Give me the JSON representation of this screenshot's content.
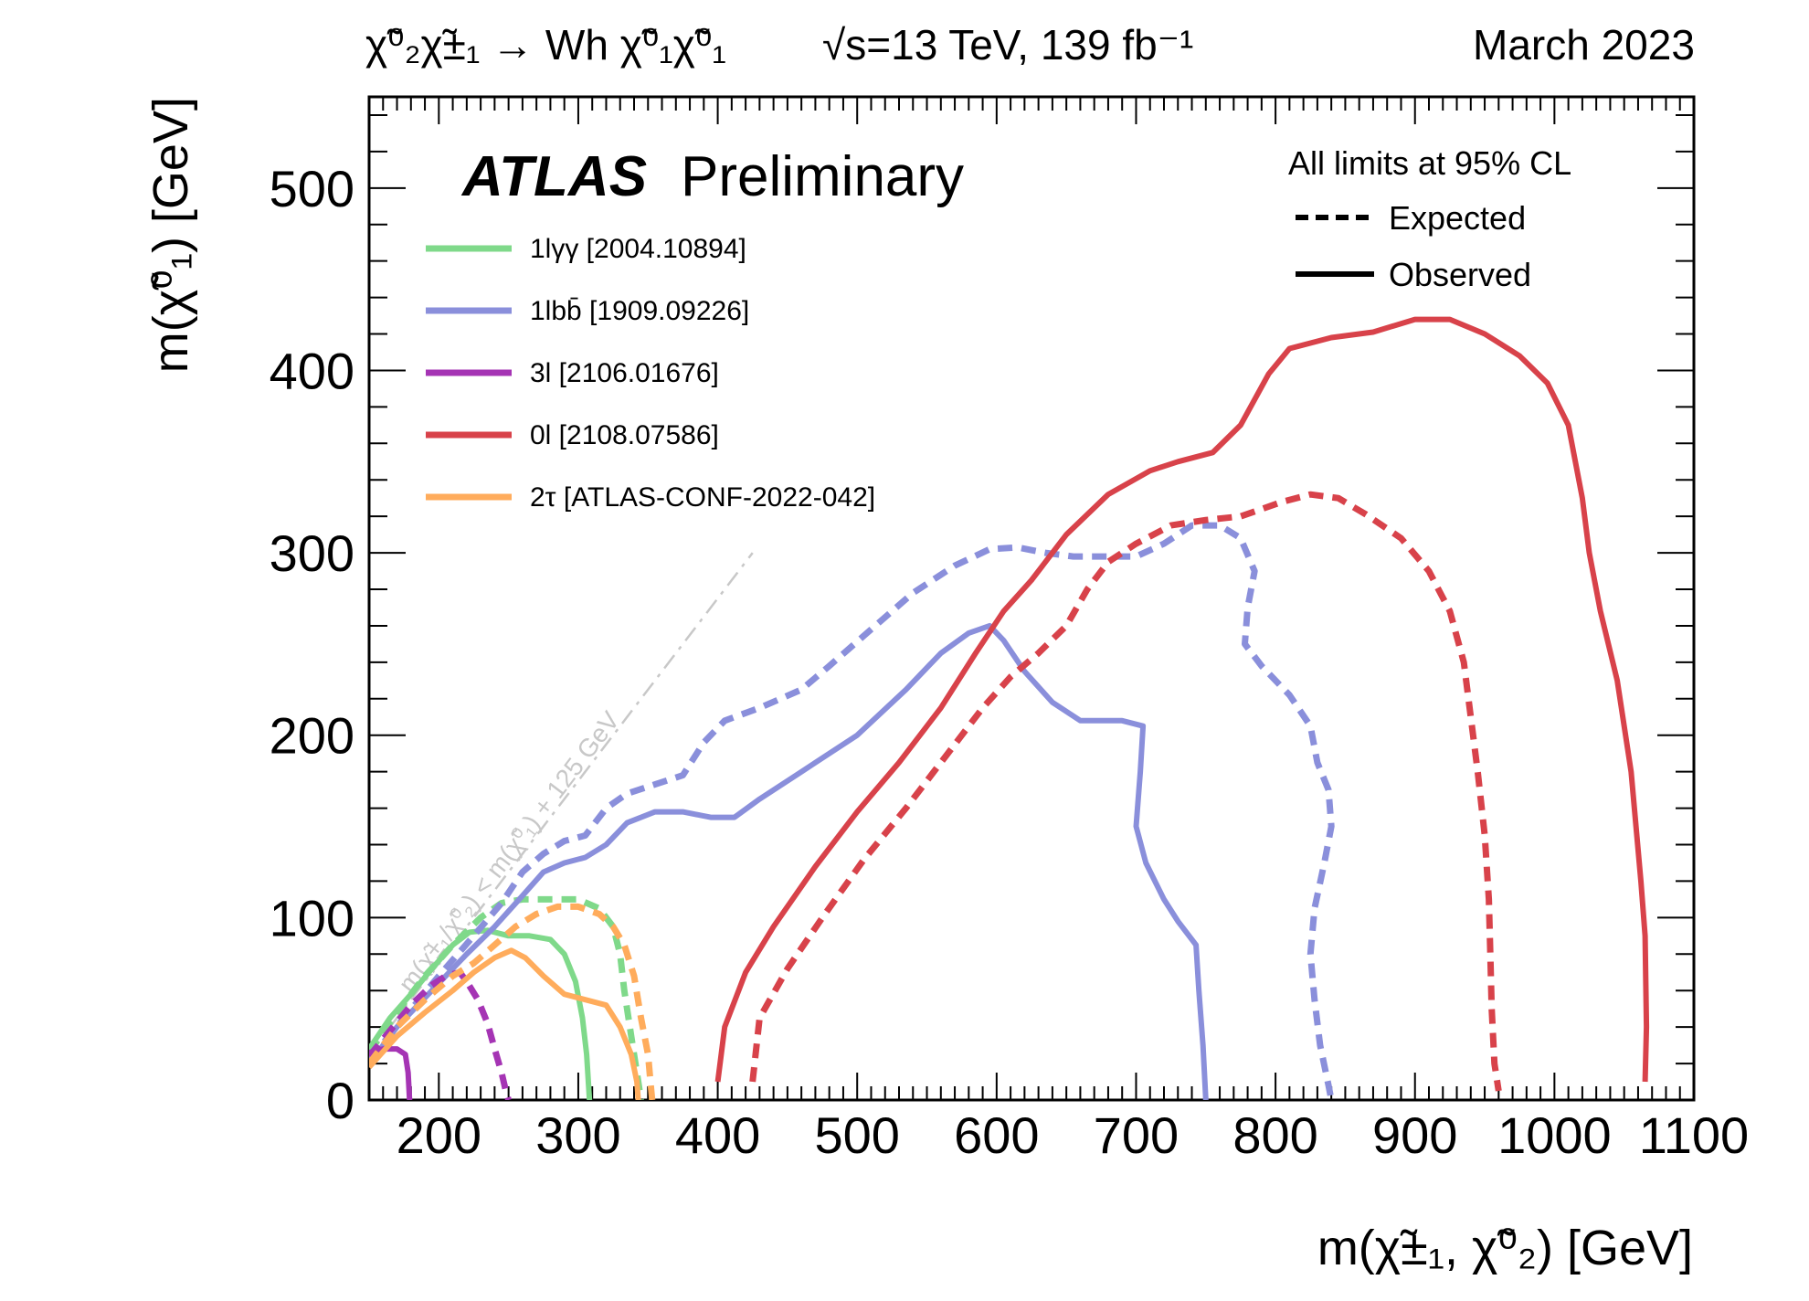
{
  "header": {
    "process": "χ̃⁰₂χ̃±₁ → Wh χ̃⁰₁χ̃⁰₁",
    "energy": "√s=13 TeV, 139 fb⁻¹",
    "date": "March 2023"
  },
  "colors": {
    "green": "#7fd98a",
    "blue": "#8a8fdb",
    "purple": "#a534b4",
    "red": "#d8424a",
    "orange": "#ffac5c",
    "diagonal": "#c8c8c8"
  },
  "chart_data": {
    "type": "line",
    "title": "ATLAS Preliminary",
    "xlabel": "m(χ̃±₁, χ̃⁰₂) [GeV]",
    "ylabel": "m(χ̃⁰₁) [GeV]",
    "xlim": [
      150,
      1100
    ],
    "ylim": [
      0,
      550
    ],
    "xticks": [
      200,
      300,
      400,
      500,
      600,
      700,
      800,
      900,
      1000,
      1100
    ],
    "yticks": [
      0,
      100,
      200,
      300,
      400,
      500
    ],
    "grid": false,
    "legend_position": "top-left",
    "atlas_label": "ATLAS",
    "atlas_sublabel": "Preliminary",
    "cl_note": "All limits at 95% CL",
    "style_legend": {
      "expected": "Expected",
      "observed": "Observed"
    },
    "diagonal": {
      "label": "m(χ̃±₁/χ̃⁰₂) < m(χ̃⁰₁) + 125 GeV",
      "points": [
        [
          150,
          25
        ],
        [
          425,
          300
        ]
      ]
    },
    "series": [
      {
        "name": "1lγγ [2004.10894]",
        "color_key": "green",
        "observed": [
          [
            150,
            28
          ],
          [
            165,
            45
          ],
          [
            180,
            58
          ],
          [
            195,
            72
          ],
          [
            210,
            85
          ],
          [
            222,
            92
          ],
          [
            235,
            93
          ],
          [
            250,
            90
          ],
          [
            265,
            90
          ],
          [
            280,
            88
          ],
          [
            290,
            80
          ],
          [
            298,
            65
          ],
          [
            303,
            45
          ],
          [
            306,
            25
          ],
          [
            308,
            0
          ]
        ],
        "expected": [
          [
            150,
            26
          ],
          [
            170,
            48
          ],
          [
            190,
            68
          ],
          [
            210,
            85
          ],
          [
            230,
            100
          ],
          [
            245,
            108
          ],
          [
            260,
            110
          ],
          [
            280,
            110
          ],
          [
            300,
            110
          ],
          [
            315,
            105
          ],
          [
            325,
            95
          ],
          [
            330,
            80
          ],
          [
            333,
            60
          ],
          [
            338,
            35
          ],
          [
            343,
            10
          ],
          [
            345,
            0
          ]
        ]
      },
      {
        "name": "1lbb̄ [1909.09226]",
        "color_key": "blue",
        "observed": [
          [
            150,
            20
          ],
          [
            170,
            40
          ],
          [
            195,
            60
          ],
          [
            220,
            80
          ],
          [
            240,
            95
          ],
          [
            260,
            112
          ],
          [
            275,
            125
          ],
          [
            290,
            130
          ],
          [
            305,
            133
          ],
          [
            320,
            140
          ],
          [
            335,
            152
          ],
          [
            355,
            158
          ],
          [
            375,
            158
          ],
          [
            395,
            155
          ],
          [
            412,
            155
          ],
          [
            430,
            165
          ],
          [
            460,
            180
          ],
          [
            500,
            200
          ],
          [
            535,
            225
          ],
          [
            560,
            245
          ],
          [
            580,
            256
          ],
          [
            595,
            260
          ],
          [
            605,
            252
          ],
          [
            620,
            235
          ],
          [
            640,
            218
          ],
          [
            660,
            208
          ],
          [
            690,
            208
          ],
          [
            705,
            205
          ],
          [
            703,
            180
          ],
          [
            700,
            150
          ],
          [
            707,
            130
          ],
          [
            720,
            110
          ],
          [
            730,
            98
          ],
          [
            743,
            85
          ],
          [
            745,
            60
          ],
          [
            748,
            30
          ],
          [
            750,
            0
          ]
        ],
        "expected": [
          [
            150,
            22
          ],
          [
            175,
            45
          ],
          [
            200,
            68
          ],
          [
            225,
            90
          ],
          [
            245,
            108
          ],
          [
            260,
            125
          ],
          [
            275,
            135
          ],
          [
            290,
            142
          ],
          [
            305,
            145
          ],
          [
            320,
            160
          ],
          [
            335,
            168
          ],
          [
            355,
            173
          ],
          [
            375,
            178
          ],
          [
            390,
            196
          ],
          [
            405,
            208
          ],
          [
            430,
            215
          ],
          [
            460,
            225
          ],
          [
            480,
            238
          ],
          [
            510,
            258
          ],
          [
            540,
            278
          ],
          [
            570,
            293
          ],
          [
            595,
            302
          ],
          [
            615,
            303
          ],
          [
            635,
            300
          ],
          [
            655,
            298
          ],
          [
            675,
            298
          ],
          [
            700,
            298
          ],
          [
            720,
            305
          ],
          [
            740,
            315
          ],
          [
            760,
            315
          ],
          [
            775,
            308
          ],
          [
            785,
            290
          ],
          [
            780,
            270
          ],
          [
            778,
            250
          ],
          [
            790,
            238
          ],
          [
            810,
            222
          ],
          [
            825,
            205
          ],
          [
            830,
            185
          ],
          [
            838,
            170
          ],
          [
            840,
            150
          ],
          [
            835,
            130
          ],
          [
            828,
            105
          ],
          [
            825,
            80
          ],
          [
            828,
            55
          ],
          [
            832,
            30
          ],
          [
            838,
            8
          ],
          [
            840,
            0
          ]
        ]
      },
      {
        "name": "3l [2106.01676]",
        "color_key": "purple",
        "observed": [
          [
            150,
            26
          ],
          [
            160,
            28
          ],
          [
            170,
            28
          ],
          [
            176,
            25
          ],
          [
            178,
            15
          ],
          [
            179,
            0
          ]
        ],
        "expected": [
          [
            150,
            24
          ],
          [
            165,
            38
          ],
          [
            180,
            52
          ],
          [
            195,
            63
          ],
          [
            205,
            68
          ],
          [
            215,
            70
          ],
          [
            220,
            65
          ],
          [
            228,
            55
          ],
          [
            235,
            42
          ],
          [
            240,
            28
          ],
          [
            245,
            15
          ],
          [
            248,
            5
          ],
          [
            250,
            0
          ]
        ]
      },
      {
        "name": "0l [2108.07586]",
        "color_key": "red",
        "observed": [
          [
            400,
            10
          ],
          [
            405,
            40
          ],
          [
            420,
            70
          ],
          [
            440,
            95
          ],
          [
            470,
            128
          ],
          [
            500,
            158
          ],
          [
            530,
            185
          ],
          [
            560,
            215
          ],
          [
            585,
            245
          ],
          [
            605,
            268
          ],
          [
            625,
            285
          ],
          [
            650,
            310
          ],
          [
            680,
            332
          ],
          [
            710,
            345
          ],
          [
            730,
            350
          ],
          [
            755,
            355
          ],
          [
            775,
            370
          ],
          [
            795,
            398
          ],
          [
            810,
            412
          ],
          [
            840,
            418
          ],
          [
            870,
            421
          ],
          [
            900,
            428
          ],
          [
            925,
            428
          ],
          [
            950,
            420
          ],
          [
            975,
            408
          ],
          [
            995,
            393
          ],
          [
            1010,
            370
          ],
          [
            1020,
            330
          ],
          [
            1025,
            300
          ],
          [
            1033,
            268
          ],
          [
            1045,
            230
          ],
          [
            1055,
            180
          ],
          [
            1062,
            120
          ],
          [
            1065,
            90
          ],
          [
            1066,
            40
          ],
          [
            1065,
            10
          ]
        ],
        "expected": [
          [
            425,
            10
          ],
          [
            430,
            45
          ],
          [
            450,
            72
          ],
          [
            475,
            100
          ],
          [
            505,
            132
          ],
          [
            535,
            160
          ],
          [
            565,
            190
          ],
          [
            590,
            215
          ],
          [
            610,
            232
          ],
          [
            630,
            245
          ],
          [
            650,
            260
          ],
          [
            665,
            280
          ],
          [
            680,
            295
          ],
          [
            700,
            305
          ],
          [
            725,
            315
          ],
          [
            750,
            318
          ],
          [
            775,
            320
          ],
          [
            805,
            328
          ],
          [
            825,
            332
          ],
          [
            845,
            330
          ],
          [
            865,
            321
          ],
          [
            890,
            308
          ],
          [
            910,
            290
          ],
          [
            925,
            268
          ],
          [
            935,
            240
          ],
          [
            940,
            210
          ],
          [
            945,
            180
          ],
          [
            950,
            145
          ],
          [
            953,
            110
          ],
          [
            954,
            80
          ],
          [
            955,
            50
          ],
          [
            957,
            20
          ],
          [
            960,
            5
          ]
        ]
      },
      {
        "name": "2τ [ATLAS-CONF-2022-042]",
        "color_key": "orange",
        "observed": [
          [
            150,
            18
          ],
          [
            170,
            35
          ],
          [
            190,
            48
          ],
          [
            210,
            60
          ],
          [
            225,
            70
          ],
          [
            240,
            78
          ],
          [
            252,
            82
          ],
          [
            262,
            78
          ],
          [
            275,
            68
          ],
          [
            290,
            58
          ],
          [
            305,
            55
          ],
          [
            320,
            52
          ],
          [
            330,
            40
          ],
          [
            338,
            25
          ],
          [
            342,
            10
          ],
          [
            343,
            0
          ]
        ],
        "expected": [
          [
            150,
            20
          ],
          [
            170,
            40
          ],
          [
            190,
            55
          ],
          [
            210,
            68
          ],
          [
            225,
            75
          ],
          [
            240,
            85
          ],
          [
            255,
            95
          ],
          [
            270,
            102
          ],
          [
            285,
            106
          ],
          [
            300,
            106
          ],
          [
            315,
            102
          ],
          [
            325,
            95
          ],
          [
            333,
            85
          ],
          [
            340,
            68
          ],
          [
            345,
            45
          ],
          [
            350,
            25
          ],
          [
            352,
            8
          ],
          [
            353,
            0
          ]
        ]
      }
    ]
  }
}
